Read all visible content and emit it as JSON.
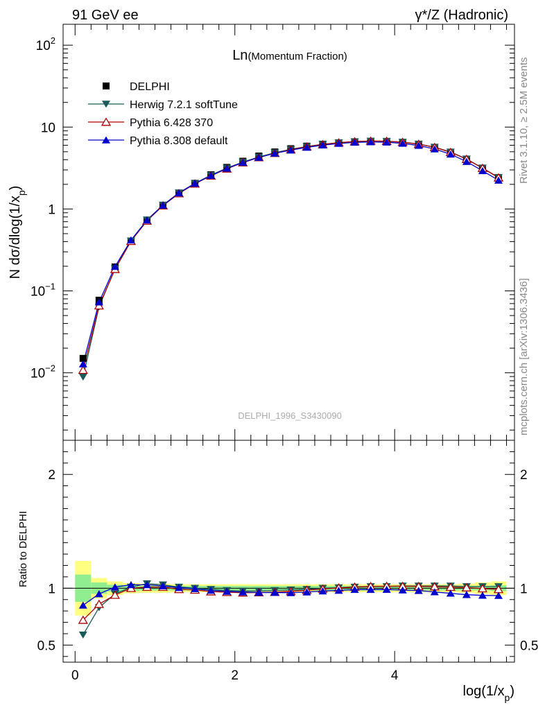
{
  "header": {
    "left": "91 GeV ee",
    "right": "γ*/Z (Hadronic)"
  },
  "side": {
    "rivet": "Rivet 3.1.10, ≥ 2.5M events",
    "mcplots": "mcplots.cern.ch [arXiv:1306.3436]"
  },
  "chart_data": [
    {
      "type": "scatter",
      "title_main": "Ln",
      "title_sub": "(Momentum Fraction)",
      "watermark": "DELPHI_1996_S3430090",
      "ylabel": "N dσ/dlog(1/x_p)",
      "ylim": [
        0.0015,
        180
      ],
      "yscale": "log",
      "ytick_labels": [
        "10^-2",
        "10^-1",
        "1",
        "10",
        "10^2"
      ],
      "x": [
        0.1,
        0.3,
        0.5,
        0.7,
        0.9,
        1.1,
        1.3,
        1.5,
        1.7,
        1.9,
        2.1,
        2.3,
        2.5,
        2.7,
        2.9,
        3.1,
        3.3,
        3.5,
        3.7,
        3.9,
        4.1,
        4.3,
        4.5,
        4.7,
        4.9,
        5.1,
        5.3
      ],
      "series": [
        {
          "name": "DELPHI",
          "color": "#000000",
          "marker": "square",
          "values": [
            0.015,
            0.077,
            0.196,
            0.405,
            0.71,
            1.09,
            1.56,
            2.06,
            2.62,
            3.22,
            3.83,
            4.43,
            4.97,
            5.45,
            5.85,
            6.18,
            6.43,
            6.59,
            6.66,
            6.61,
            6.43,
            6.09,
            5.58,
            4.88,
            4.02,
            3.12,
            2.39
          ]
        },
        {
          "name": "Herwig 7.2.1 softTune",
          "color": "#1a5a5a",
          "marker": "triangle-down",
          "values": [
            0.0089,
            0.064,
            0.186,
            0.408,
            0.737,
            1.118,
            1.578,
            2.06,
            2.59,
            3.16,
            3.74,
            4.32,
            4.87,
            5.36,
            5.79,
            6.17,
            6.45,
            6.65,
            6.75,
            6.72,
            6.56,
            6.22,
            5.69,
            4.97,
            4.09,
            3.17,
            2.43
          ]
        },
        {
          "name": "Pythia 6.428 370",
          "color": "#aa0000",
          "marker": "triangle-up-open",
          "values": [
            0.0108,
            0.066,
            0.184,
            0.405,
            0.716,
            1.099,
            1.545,
            2.03,
            2.54,
            3.1,
            3.68,
            4.26,
            4.8,
            5.3,
            5.75,
            6.14,
            6.45,
            6.66,
            6.77,
            6.73,
            6.54,
            6.19,
            5.66,
            4.93,
            4.06,
            3.15,
            2.41
          ]
        },
        {
          "name": "Pythia 8.308 default",
          "color": "#0000cc",
          "marker": "triangle-up",
          "values": [
            0.0128,
            0.073,
            0.198,
            0.417,
            0.73,
            1.11,
            1.57,
            2.05,
            2.56,
            3.13,
            3.7,
            4.26,
            4.78,
            5.23,
            5.65,
            6.02,
            6.3,
            6.51,
            6.58,
            6.54,
            6.32,
            5.96,
            5.4,
            4.66,
            3.79,
            2.93,
            2.24
          ]
        }
      ]
    },
    {
      "type": "scatter",
      "ylabel": "Ratio to DELPHI",
      "xlabel": "log(1/x_p)",
      "xlim": [
        -0.15,
        5.5
      ],
      "ylim": [
        0.35,
        2.3
      ],
      "xtick_labels": [
        "0",
        "2",
        "4"
      ],
      "ytick_labels": [
        "0.5",
        "1",
        "2"
      ],
      "x": [
        0.1,
        0.3,
        0.5,
        0.7,
        0.9,
        1.1,
        1.3,
        1.5,
        1.7,
        1.9,
        2.1,
        2.3,
        2.5,
        2.7,
        2.9,
        3.1,
        3.3,
        3.5,
        3.7,
        3.9,
        4.1,
        4.3,
        4.5,
        4.7,
        4.9,
        5.1,
        5.3
      ],
      "bands": {
        "stat_half_width": [
          0.12,
          0.05,
          0.03,
          0.025,
          0.02,
          0.02,
          0.02,
          0.02,
          0.02,
          0.02,
          0.02,
          0.02,
          0.02,
          0.02,
          0.02,
          0.02,
          0.02,
          0.02,
          0.02,
          0.02,
          0.02,
          0.02,
          0.02,
          0.02,
          0.02,
          0.02,
          0.025
        ],
        "total_half_width": [
          0.24,
          0.09,
          0.06,
          0.045,
          0.04,
          0.04,
          0.035,
          0.035,
          0.035,
          0.035,
          0.035,
          0.035,
          0.035,
          0.035,
          0.035,
          0.035,
          0.035,
          0.035,
          0.035,
          0.035,
          0.035,
          0.035,
          0.035,
          0.035,
          0.04,
          0.05,
          0.06
        ],
        "stat_color": "#90ee90",
        "total_color": "#ffff80"
      },
      "series": [
        {
          "name": "Herwig 7.2.1 softTune",
          "color": "#1a5a5a",
          "marker": "triangle-down",
          "values": [
            0.59,
            0.83,
            0.95,
            1.01,
            1.04,
            1.03,
            1.01,
            1.0,
            0.99,
            0.98,
            0.975,
            0.975,
            0.98,
            0.985,
            0.99,
            1.0,
            1.005,
            1.01,
            1.015,
            1.015,
            1.02,
            1.02,
            1.02,
            1.02,
            1.015,
            1.015,
            1.015
          ]
        },
        {
          "name": "Pythia 6.428 370",
          "color": "#aa0000",
          "marker": "triangle-up-open",
          "values": [
            0.72,
            0.86,
            0.94,
            1.0,
            1.01,
            1.01,
            0.99,
            0.985,
            0.97,
            0.965,
            0.96,
            0.962,
            0.965,
            0.972,
            0.983,
            0.993,
            1.003,
            1.011,
            1.016,
            1.018,
            1.017,
            1.016,
            1.014,
            1.01,
            1.005,
            0.997,
            0.99
          ]
        },
        {
          "name": "Pythia 8.308 default",
          "color": "#0000cc",
          "marker": "triangle-up",
          "values": [
            0.85,
            0.95,
            1.01,
            1.03,
            1.03,
            1.02,
            1.005,
            0.995,
            0.98,
            0.972,
            0.966,
            0.962,
            0.962,
            0.96,
            0.966,
            0.975,
            0.98,
            0.988,
            0.988,
            0.989,
            0.983,
            0.979,
            0.967,
            0.955,
            0.943,
            0.937,
            0.935
          ]
        }
      ]
    }
  ]
}
